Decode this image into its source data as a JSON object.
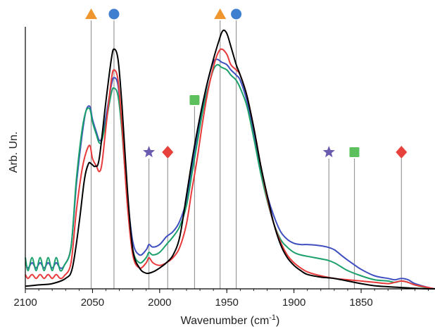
{
  "chart_data": {
    "type": "line",
    "title": "",
    "xlabel": "Wavenumber (cm-1)",
    "xlabel_main": "Wavenumber (cm",
    "xlabel_sup": "-1",
    "xlabel_close": ")",
    "ylabel": "Arb. Un.",
    "xlim": [
      2100,
      1795
    ],
    "x_reversed": true,
    "y_ticks_shown": false,
    "grid": false,
    "legend": "none",
    "x_ticks": [
      2100,
      2050,
      2000,
      1950,
      1900,
      1850
    ],
    "x_tick_labels": [
      "2100",
      "2050",
      "2000",
      "1950",
      "1900",
      "1850"
    ],
    "markers": [
      {
        "symbol": "triangle",
        "color": "#f0962e",
        "x": 2051,
        "row": "top"
      },
      {
        "symbol": "circle",
        "color": "#3f7fd0",
        "x": 2034,
        "row": "top"
      },
      {
        "symbol": "triangle",
        "color": "#f0962e",
        "x": 1955,
        "row": "top"
      },
      {
        "symbol": "circle",
        "color": "#3f7fd0",
        "x": 1943,
        "row": "top"
      },
      {
        "symbol": "square",
        "color": "#5cc05c",
        "x": 1974,
        "row": "middle"
      },
      {
        "symbol": "star",
        "color": "#6b5bb0",
        "x": 2008,
        "row": "low"
      },
      {
        "symbol": "diamond",
        "color": "#e8403a",
        "x": 1994,
        "row": "low"
      },
      {
        "symbol": "star",
        "color": "#6b5bb0",
        "x": 1874,
        "row": "low"
      },
      {
        "symbol": "square",
        "color": "#5cc05c",
        "x": 1855,
        "row": "low"
      },
      {
        "symbol": "diamond",
        "color": "#e8403a",
        "x": 1820,
        "row": "low"
      }
    ],
    "series": [
      {
        "color": "#000000",
        "x": [
          2102,
          2090,
          2080,
          2070,
          2065,
          2060,
          2056,
          2053,
          2051,
          2048,
          2045,
          2040,
          2036,
          2034,
          2031,
          2028,
          2024,
          2020,
          2015,
          2010,
          2005,
          2000,
          1995,
          1990,
          1985,
          1980,
          1975,
          1970,
          1965,
          1960,
          1956,
          1953,
          1950,
          1947,
          1943,
          1940,
          1935,
          1930,
          1925,
          1920,
          1915,
          1910,
          1905,
          1900,
          1895,
          1890,
          1880,
          1870,
          1860,
          1850,
          1840,
          1830,
          1820,
          1810,
          1800,
          1795
        ],
        "y": [
          0.01,
          0.015,
          0.02,
          0.04,
          0.08,
          0.25,
          0.42,
          0.48,
          0.48,
          0.47,
          0.5,
          0.72,
          0.88,
          0.92,
          0.88,
          0.7,
          0.38,
          0.15,
          0.08,
          0.06,
          0.065,
          0.08,
          0.1,
          0.13,
          0.2,
          0.36,
          0.52,
          0.66,
          0.78,
          0.88,
          0.95,
          0.99,
          0.98,
          0.93,
          0.86,
          0.82,
          0.74,
          0.62,
          0.48,
          0.36,
          0.25,
          0.17,
          0.12,
          0.09,
          0.07,
          0.055,
          0.045,
          0.04,
          0.03,
          0.02,
          0.012,
          0.008,
          0.005,
          0.002,
          0.0,
          0.0
        ]
      },
      {
        "color": "#e83a3a",
        "x": [
          2102,
          2098,
          2095,
          2092,
          2089,
          2086,
          2083,
          2080,
          2077,
          2074,
          2071,
          2066,
          2062,
          2058,
          2055,
          2052,
          2050,
          2047,
          2045,
          2043,
          2040,
          2036,
          2034,
          2031,
          2028,
          2024,
          2020,
          2015,
          2010,
          2008,
          2005,
          2000,
          1995,
          1990,
          1985,
          1980,
          1976,
          1972,
          1968,
          1964,
          1960,
          1957,
          1954,
          1950,
          1947,
          1943,
          1940,
          1935,
          1930,
          1925,
          1920,
          1915,
          1910,
          1905,
          1900,
          1895,
          1890,
          1880,
          1870,
          1860,
          1850,
          1840,
          1830,
          1825,
          1820,
          1815,
          1810,
          1800,
          1795
        ],
        "y": [
          0.055,
          0.04,
          0.055,
          0.04,
          0.055,
          0.04,
          0.055,
          0.04,
          0.055,
          0.04,
          0.05,
          0.1,
          0.3,
          0.45,
          0.52,
          0.55,
          0.5,
          0.47,
          0.45,
          0.48,
          0.62,
          0.8,
          0.84,
          0.8,
          0.62,
          0.32,
          0.13,
          0.08,
          0.1,
          0.12,
          0.1,
          0.09,
          0.1,
          0.12,
          0.16,
          0.25,
          0.38,
          0.5,
          0.64,
          0.76,
          0.85,
          0.9,
          0.92,
          0.9,
          0.86,
          0.84,
          0.82,
          0.74,
          0.62,
          0.48,
          0.35,
          0.25,
          0.18,
          0.13,
          0.1,
          0.08,
          0.065,
          0.05,
          0.04,
          0.035,
          0.03,
          0.025,
          0.02,
          0.025,
          0.03,
          0.025,
          0.015,
          0.005,
          0.0
        ]
      },
      {
        "color": "#3f4fc0",
        "x": [
          2102,
          2098,
          2095,
          2092,
          2089,
          2086,
          2083,
          2080,
          2077,
          2074,
          2071,
          2066,
          2062,
          2058,
          2055,
          2052,
          2050,
          2047,
          2045,
          2043,
          2040,
          2036,
          2034,
          2031,
          2028,
          2024,
          2020,
          2015,
          2010,
          2008,
          2005,
          2000,
          1995,
          1990,
          1985,
          1980,
          1976,
          1972,
          1968,
          1964,
          1960,
          1957,
          1954,
          1950,
          1947,
          1943,
          1940,
          1935,
          1930,
          1925,
          1920,
          1915,
          1910,
          1905,
          1900,
          1895,
          1890,
          1885,
          1880,
          1875,
          1870,
          1865,
          1860,
          1850,
          1840,
          1830,
          1825,
          1820,
          1815,
          1810,
          1800,
          1795
        ],
        "y": [
          0.1,
          0.08,
          0.1,
          0.08,
          0.1,
          0.08,
          0.1,
          0.08,
          0.1,
          0.08,
          0.09,
          0.16,
          0.4,
          0.58,
          0.68,
          0.7,
          0.65,
          0.6,
          0.57,
          0.58,
          0.66,
          0.78,
          0.81,
          0.78,
          0.62,
          0.36,
          0.18,
          0.13,
          0.15,
          0.17,
          0.16,
          0.17,
          0.2,
          0.22,
          0.26,
          0.34,
          0.46,
          0.58,
          0.7,
          0.8,
          0.87,
          0.88,
          0.87,
          0.86,
          0.84,
          0.82,
          0.8,
          0.72,
          0.6,
          0.47,
          0.36,
          0.28,
          0.22,
          0.19,
          0.175,
          0.17,
          0.17,
          0.168,
          0.165,
          0.16,
          0.15,
          0.13,
          0.11,
          0.075,
          0.05,
          0.04,
          0.035,
          0.04,
          0.035,
          0.02,
          0.005,
          0.0
        ]
      },
      {
        "color": "#1aa06a",
        "x": [
          2102,
          2098,
          2095,
          2092,
          2089,
          2086,
          2083,
          2080,
          2077,
          2074,
          2071,
          2066,
          2062,
          2058,
          2055,
          2052,
          2050,
          2047,
          2045,
          2043,
          2040,
          2036,
          2034,
          2031,
          2028,
          2024,
          2020,
          2015,
          2010,
          2008,
          2005,
          2000,
          1995,
          1990,
          1985,
          1980,
          1976,
          1972,
          1968,
          1964,
          1960,
          1957,
          1954,
          1950,
          1947,
          1943,
          1940,
          1935,
          1930,
          1925,
          1920,
          1915,
          1910,
          1905,
          1900,
          1895,
          1890,
          1885,
          1880,
          1875,
          1870,
          1865,
          1860,
          1850,
          1840,
          1830,
          1825,
          1820,
          1815,
          1810,
          1800,
          1795
        ],
        "y": [
          0.12,
          0.07,
          0.12,
          0.07,
          0.12,
          0.07,
          0.12,
          0.07,
          0.12,
          0.07,
          0.09,
          0.16,
          0.42,
          0.6,
          0.68,
          0.69,
          0.64,
          0.59,
          0.56,
          0.57,
          0.64,
          0.75,
          0.77,
          0.74,
          0.6,
          0.33,
          0.15,
          0.1,
          0.12,
          0.14,
          0.13,
          0.14,
          0.17,
          0.2,
          0.24,
          0.32,
          0.44,
          0.56,
          0.68,
          0.77,
          0.84,
          0.86,
          0.85,
          0.84,
          0.82,
          0.8,
          0.77,
          0.7,
          0.58,
          0.45,
          0.34,
          0.25,
          0.19,
          0.16,
          0.14,
          0.13,
          0.125,
          0.12,
          0.115,
          0.11,
          0.1,
          0.085,
          0.07,
          0.05,
          0.035,
          0.03,
          0.025,
          0.03,
          0.025,
          0.015,
          0.003,
          0.0
        ]
      }
    ]
  }
}
